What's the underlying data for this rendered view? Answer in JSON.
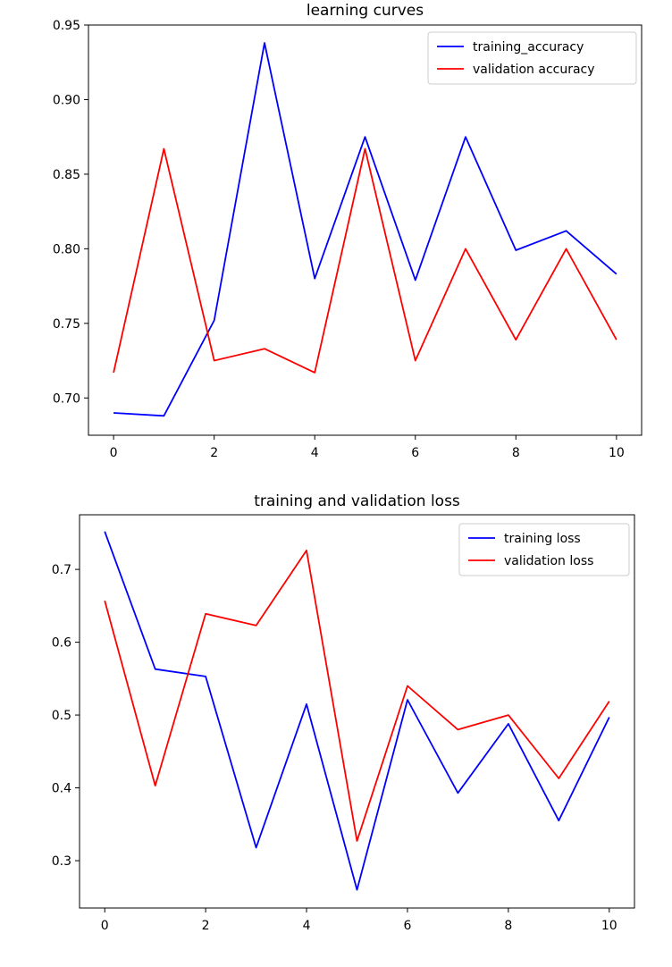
{
  "chart_data": [
    {
      "type": "line",
      "title": "learning curves",
      "xlabel": "",
      "ylabel": "",
      "x": [
        0,
        1,
        2,
        3,
        4,
        5,
        6,
        7,
        8,
        9,
        10
      ],
      "xlim": [
        -0.5,
        10.5
      ],
      "ylim": [
        0.675,
        0.95
      ],
      "xticks": [
        0,
        2,
        4,
        6,
        8,
        10
      ],
      "xtick_labels": [
        "0",
        "2",
        "4",
        "6",
        "8",
        "10"
      ],
      "yticks": [
        0.7,
        0.75,
        0.8,
        0.85,
        0.9,
        0.95
      ],
      "ytick_labels": [
        "0.70",
        "0.75",
        "0.80",
        "0.85",
        "0.90",
        "0.95"
      ],
      "grid": false,
      "legend_position": "top-right",
      "series": [
        {
          "name": "training_accuracy",
          "color": "#0000ff",
          "values": [
            0.69,
            0.688,
            0.752,
            0.938,
            0.78,
            0.875,
            0.779,
            0.875,
            0.799,
            0.812,
            0.783
          ]
        },
        {
          "name": "validation accuracy",
          "color": "#ff0000",
          "values": [
            0.717,
            0.867,
            0.725,
            0.733,
            0.717,
            0.867,
            0.725,
            0.8,
            0.739,
            0.8,
            0.739
          ]
        }
      ]
    },
    {
      "type": "line",
      "title": "training and validation loss",
      "xlabel": "",
      "ylabel": "",
      "x": [
        0,
        1,
        2,
        3,
        4,
        5,
        6,
        7,
        8,
        9,
        10
      ],
      "xlim": [
        -0.5,
        10.5
      ],
      "ylim": [
        0.235,
        0.775
      ],
      "xticks": [
        0,
        2,
        4,
        6,
        8,
        10
      ],
      "xtick_labels": [
        "0",
        "2",
        "4",
        "6",
        "8",
        "10"
      ],
      "yticks": [
        0.3,
        0.4,
        0.5,
        0.6,
        0.7
      ],
      "ytick_labels": [
        "0.3",
        "0.4",
        "0.5",
        "0.6",
        "0.7"
      ],
      "grid": false,
      "legend_position": "top-right",
      "series": [
        {
          "name": "training loss",
          "color": "#0000ff",
          "values": [
            0.752,
            0.563,
            0.553,
            0.318,
            0.515,
            0.26,
            0.521,
            0.393,
            0.488,
            0.355,
            0.497
          ]
        },
        {
          "name": "validation loss",
          "color": "#ff0000",
          "values": [
            0.657,
            0.403,
            0.639,
            0.623,
            0.726,
            0.327,
            0.54,
            0.48,
            0.5,
            0.413,
            0.519
          ]
        }
      ]
    }
  ]
}
